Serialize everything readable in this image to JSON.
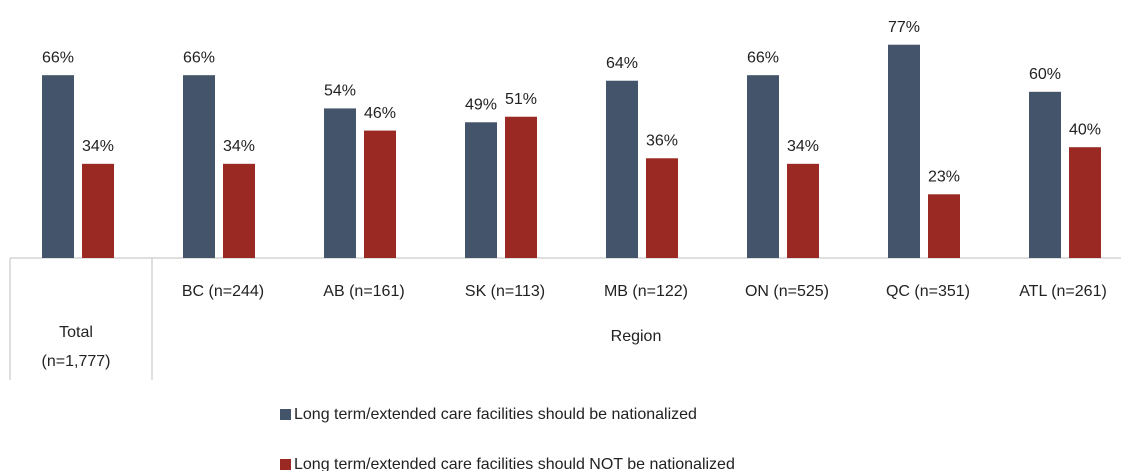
{
  "chart_data": {
    "type": "bar",
    "categories": [
      "Total (n=1,777)",
      "BC (n=244)",
      "AB (n=161)",
      "SK (n=113)",
      "MB (n=122)",
      "ON (n=525)",
      "QC (n=351)",
      "ATL (n=261)"
    ],
    "group_label": "Region",
    "series": [
      {
        "name": "Long term/extended care facilities should be nationalized",
        "color": "#44546a",
        "values": [
          66,
          66,
          54,
          49,
          64,
          66,
          77,
          60
        ],
        "value_labels": [
          "66%",
          "66%",
          "54%",
          "49%",
          "64%",
          "66%",
          "77%",
          "60%"
        ]
      },
      {
        "name": "Long term/extended care facilities should NOT be nationalized",
        "color": "#9b2923",
        "values": [
          34,
          34,
          46,
          51,
          36,
          34,
          23,
          40
        ],
        "value_labels": [
          "34%",
          "34%",
          "46%",
          "51%",
          "36%",
          "34%",
          "23%",
          "40%"
        ]
      }
    ],
    "legend": "bottom"
  }
}
